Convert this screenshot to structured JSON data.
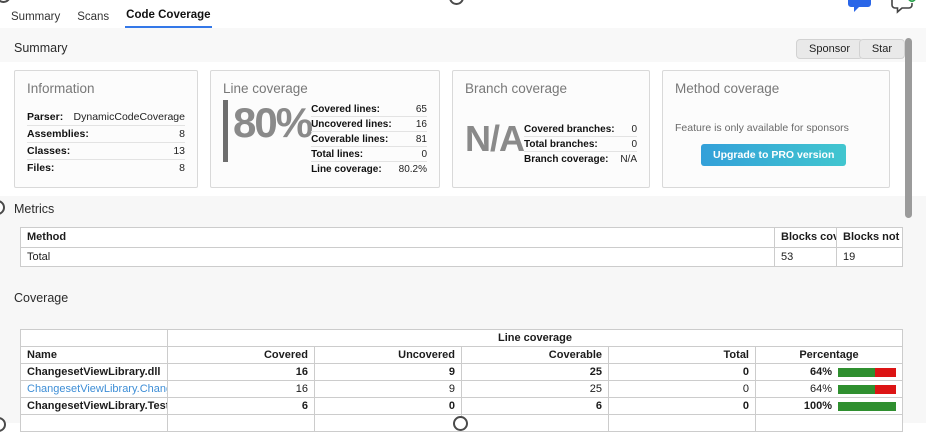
{
  "tabs": [
    {
      "label": "Summary",
      "active": false
    },
    {
      "label": "Scans",
      "active": false
    },
    {
      "label": "Code Coverage",
      "active": true
    }
  ],
  "sections": {
    "summary": {
      "title": "Summary",
      "sponsor_label": "Sponsor",
      "star_label": "Star"
    },
    "metrics": {
      "title": "Metrics"
    },
    "coverage": {
      "title": "Coverage",
      "group_header": "Line coverage"
    }
  },
  "cards": {
    "information": {
      "title": "Information",
      "rows": [
        [
          "Parser:",
          "DynamicCodeCoverage"
        ],
        [
          "Assemblies:",
          "8"
        ],
        [
          "Classes:",
          "13"
        ],
        [
          "Files:",
          "8"
        ]
      ]
    },
    "line_coverage": {
      "title": "Line coverage",
      "big_value": "80%",
      "rows": [
        [
          "Covered lines:",
          "65"
        ],
        [
          "Uncovered lines:",
          "16"
        ],
        [
          "Coverable lines:",
          "81"
        ],
        [
          "Total lines:",
          "0"
        ],
        [
          "Line coverage:",
          "80.2%"
        ]
      ]
    },
    "branch_coverage": {
      "title": "Branch coverage",
      "big_value": "N/A",
      "rows": [
        [
          "Covered branches:",
          "0"
        ],
        [
          "Total branches:",
          "0"
        ],
        [
          "Branch coverage:",
          "N/A"
        ]
      ]
    },
    "method_coverage": {
      "title": "Method coverage",
      "note": "Feature is only available for sponsors",
      "button_label": "Upgrade to PRO version"
    }
  },
  "metrics_table": {
    "headers": [
      "Method",
      "Blocks covered",
      "Blocks not covered"
    ],
    "rows": [
      {
        "method": "Total",
        "blocks_covered": "53",
        "blocks_not_covered": "19"
      }
    ]
  },
  "coverage_table": {
    "headers": [
      "Name",
      "Covered",
      "Uncovered",
      "Coverable",
      "Total",
      "Percentage"
    ],
    "rows": [
      {
        "name": "ChangesetViewLibrary.dll",
        "style": "bold",
        "covered": "16",
        "uncovered": "9",
        "coverable": "25",
        "total": "0",
        "percentage": "64%",
        "green_pct": 64,
        "red_pct": 36
      },
      {
        "name": "ChangesetViewLibrary.ChangesetLibrary",
        "style": "link",
        "covered": "16",
        "uncovered": "9",
        "coverable": "25",
        "total": "0",
        "percentage": "64%",
        "green_pct": 64,
        "red_pct": 36
      },
      {
        "name": "ChangesetViewLibrary.Tests.dll",
        "style": "bold",
        "covered": "6",
        "uncovered": "0",
        "coverable": "6",
        "total": "0",
        "percentage": "100%",
        "green_pct": 100,
        "red_pct": 0
      }
    ]
  },
  "colors": {
    "accent_blue": "#3478e8",
    "link_blue": "#3e8ed6",
    "bar_green": "#2f8f2f",
    "bar_red": "#dc1414",
    "bubble_blue": "#2a66e8",
    "badge_green": "#2da44e"
  }
}
